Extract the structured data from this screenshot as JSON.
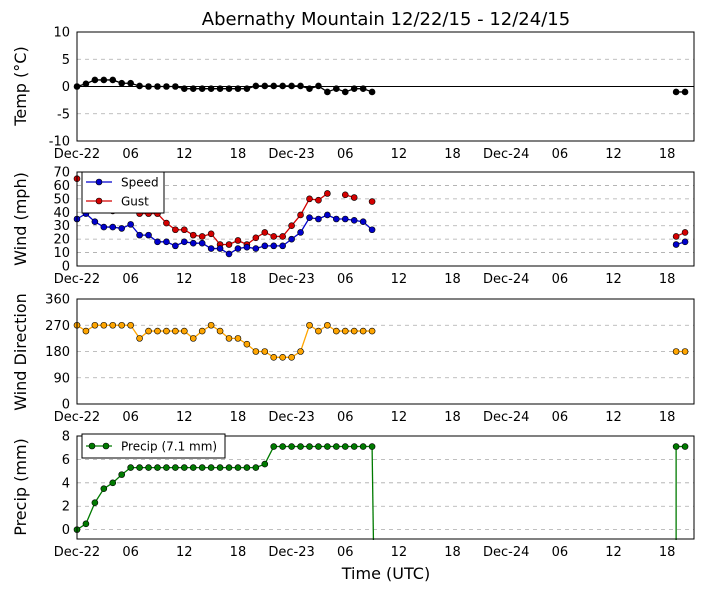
{
  "figure": {
    "title": "Abernathy Mountain 12/22/15 - 12/24/15",
    "xlabel": "Time (UTC)",
    "xticks": {
      "positions": [
        0,
        6,
        12,
        18,
        24,
        30,
        36,
        42,
        48,
        54,
        60,
        66
      ],
      "labels": [
        "Dec-22",
        "06",
        "12",
        "18",
        "Dec-23",
        "06",
        "12",
        "18",
        "Dec-24",
        "06",
        "12",
        "18"
      ]
    },
    "colors": {
      "gust": "#d40000",
      "speed": "#0000cc",
      "direction": "#ffa500",
      "precip": "#007a00",
      "temp": "#000000",
      "grid": "#aaaaaa"
    }
  },
  "chart_data": [
    {
      "type": "line",
      "ylabel": "Temp (°C)",
      "ylim": [
        -10,
        10
      ],
      "yticks": [
        -10,
        -5,
        0,
        5,
        10
      ],
      "zero_line": true,
      "series": [
        {
          "x": [
            0,
            1,
            2,
            3,
            4,
            5,
            6,
            7,
            8,
            9,
            10,
            11,
            12,
            13,
            14,
            15,
            16,
            17,
            18,
            19,
            20,
            21,
            22,
            23,
            24,
            25,
            26,
            27,
            28,
            29,
            30,
            31,
            32,
            33,
            34,
            67,
            68
          ],
          "values": [
            0,
            0.5,
            1.2,
            1.2,
            1.2,
            0.6,
            0.6,
            0.1,
            0,
            0,
            0,
            0,
            -0.4,
            -0.4,
            -0.4,
            -0.4,
            -0.4,
            -0.4,
            -0.4,
            -0.4,
            0.1,
            0.1,
            0.1,
            0.1,
            0.1,
            0.1,
            -0.4,
            0.1,
            -1,
            -0.4,
            -1,
            -0.4,
            -0.4,
            -1,
            null,
            -1,
            -1
          ],
          "gap_after": 34
        }
      ]
    },
    {
      "type": "line",
      "ylabel": "Wind (mph)",
      "ylim": [
        0,
        70
      ],
      "yticks": [
        0,
        10,
        20,
        30,
        40,
        50,
        60,
        70
      ],
      "legend": "upper-left",
      "series": [
        {
          "name": "Speed",
          "x": [
            0,
            1,
            2,
            3,
            4,
            5,
            6,
            7,
            8,
            9,
            10,
            11,
            12,
            13,
            14,
            15,
            16,
            17,
            18,
            19,
            20,
            21,
            22,
            23,
            24,
            25,
            26,
            27,
            28,
            29,
            30,
            31,
            32,
            33,
            67,
            68
          ],
          "values": [
            35,
            39,
            33,
            29,
            29,
            28,
            31,
            23,
            23,
            18,
            18,
            15,
            18,
            17,
            17,
            13,
            13,
            9,
            13,
            14,
            13,
            15,
            15,
            15,
            20,
            25,
            36,
            35,
            38,
            35,
            35,
            34,
            33,
            27,
            16,
            18
          ]
        },
        {
          "name": "Gust",
          "x": [
            0,
            1,
            2,
            3,
            4,
            5,
            6,
            7,
            8,
            9,
            10,
            11,
            12,
            13,
            14,
            15,
            16,
            17,
            18,
            19,
            20,
            21,
            22,
            23,
            24,
            25,
            26,
            27,
            28,
            29,
            30,
            31,
            32,
            33,
            67,
            68
          ],
          "values": [
            65,
            null,
            null,
            null,
            41,
            null,
            null,
            39,
            39,
            39,
            32,
            27,
            27,
            23,
            22,
            24,
            16,
            16,
            19,
            16,
            21,
            25,
            22,
            22,
            30,
            38,
            50,
            49,
            54,
            null,
            53,
            51,
            null,
            48,
            22,
            25
          ]
        }
      ]
    },
    {
      "type": "line",
      "ylabel": "Wind Direction",
      "ylim": [
        0,
        360
      ],
      "yticks": [
        0,
        90,
        180,
        270,
        360
      ],
      "series": [
        {
          "x": [
            0,
            1,
            2,
            3,
            4,
            5,
            6,
            7,
            8,
            9,
            10,
            11,
            12,
            13,
            14,
            15,
            16,
            17,
            18,
            19,
            20,
            21,
            22,
            23,
            24,
            25,
            26,
            27,
            28,
            29,
            30,
            31,
            32,
            33,
            67,
            68
          ],
          "values": [
            270,
            250,
            270,
            270,
            270,
            270,
            270,
            225,
            250,
            250,
            250,
            250,
            250,
            225,
            250,
            270,
            250,
            225,
            225,
            205,
            180,
            180,
            160,
            160,
            160,
            180,
            270,
            250,
            270,
            250,
            250,
            250,
            250,
            250,
            180,
            180
          ]
        }
      ]
    },
    {
      "type": "line",
      "ylabel": "Precip (mm)",
      "ylim": [
        -0.8,
        8
      ],
      "yticks": [
        0,
        2,
        4,
        6,
        8
      ],
      "legend": "upper-left",
      "series": [
        {
          "name": "Precip (7.1 mm)",
          "x": [
            0,
            1,
            2,
            3,
            4,
            5,
            6,
            7,
            8,
            9,
            10,
            11,
            12,
            13,
            14,
            15,
            16,
            17,
            18,
            19,
            20,
            21,
            22,
            23,
            24,
            25,
            26,
            27,
            28,
            29,
            30,
            31,
            32,
            33,
            67,
            68
          ],
          "values": [
            0,
            0.5,
            2.3,
            3.5,
            4,
            4.7,
            5.3,
            5.3,
            5.3,
            5.3,
            5.3,
            5.3,
            5.3,
            5.3,
            5.3,
            5.3,
            5.3,
            5.3,
            5.3,
            5.3,
            5.3,
            5.6,
            7.1,
            7.1,
            7.1,
            7.1,
            7.1,
            7.1,
            7.1,
            7.1,
            7.1,
            7.1,
            7.1,
            7.1,
            7.1,
            7.1
          ],
          "drop_after": 33,
          "rise_before": 67
        }
      ]
    }
  ]
}
